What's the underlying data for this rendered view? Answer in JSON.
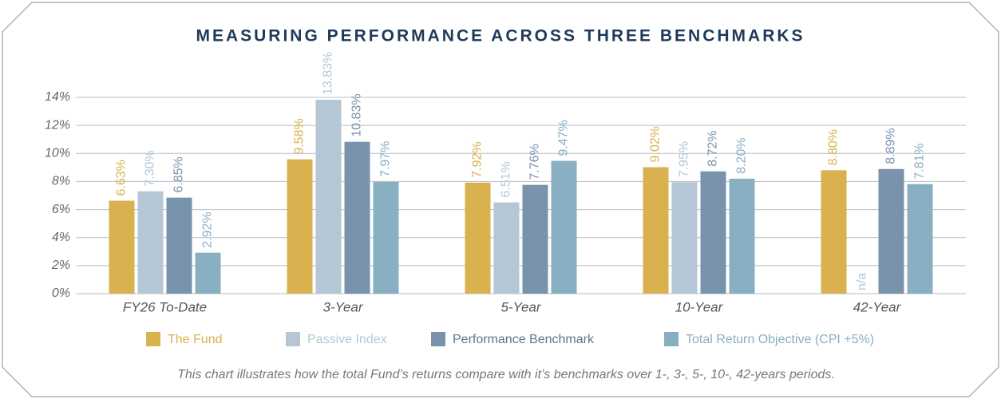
{
  "chart_data": {
    "type": "bar",
    "title": "MEASURING PERFORMANCE ACROSS THREE BENCHMARKS",
    "categories": [
      "FY26 To-Date",
      "3-Year",
      "5-Year",
      "10-Year",
      "42-Year"
    ],
    "series": [
      {
        "name": "The Fund",
        "color": "#d9b24f",
        "values": [
          6.63,
          9.58,
          7.92,
          9.02,
          8.8
        ],
        "value_labels": [
          "6.63%",
          "9.58%",
          "7.92%",
          "9.02%",
          "8.80%"
        ]
      },
      {
        "name": "Passive Index",
        "color": "#b5c7d5",
        "values": [
          7.3,
          13.83,
          6.51,
          7.95,
          null
        ],
        "value_labels": [
          "7.30%",
          "13.83%",
          "6.51%",
          "7.95%",
          "n/a"
        ]
      },
      {
        "name": "Performance Benchmark",
        "color": "#7a93ad",
        "values": [
          6.85,
          10.83,
          7.76,
          8.72,
          8.89
        ],
        "value_labels": [
          "6.85%",
          "10.83%",
          "7.76%",
          "8.72%",
          "8.89%"
        ]
      },
      {
        "name": "Total Return Objective (CPI +5%)",
        "color": "#89afc3",
        "values": [
          2.92,
          7.97,
          9.47,
          8.2,
          7.81
        ],
        "value_labels": [
          "2.92%",
          "7.97%",
          "9.47%",
          "8.20%",
          "7.81%"
        ]
      }
    ],
    "ylim": [
      0,
      14
    ],
    "yticks": [
      {
        "value": 0,
        "label": "0%"
      },
      {
        "value": 2,
        "label": "2%"
      },
      {
        "value": 4,
        "label": "4%"
      },
      {
        "value": 6,
        "label": "6%"
      },
      {
        "value": 8,
        "label": "8%"
      },
      {
        "value": 10,
        "label": "10%"
      },
      {
        "value": 12,
        "label": "12%"
      },
      {
        "value": 14,
        "label": "14%"
      }
    ],
    "grid": true,
    "legend": "bottom",
    "caption": "This chart illustrates how the total Fund’s returns compare with it’s benchmarks over 1-, 3-, 5-, 10-, 42-years periods."
  }
}
